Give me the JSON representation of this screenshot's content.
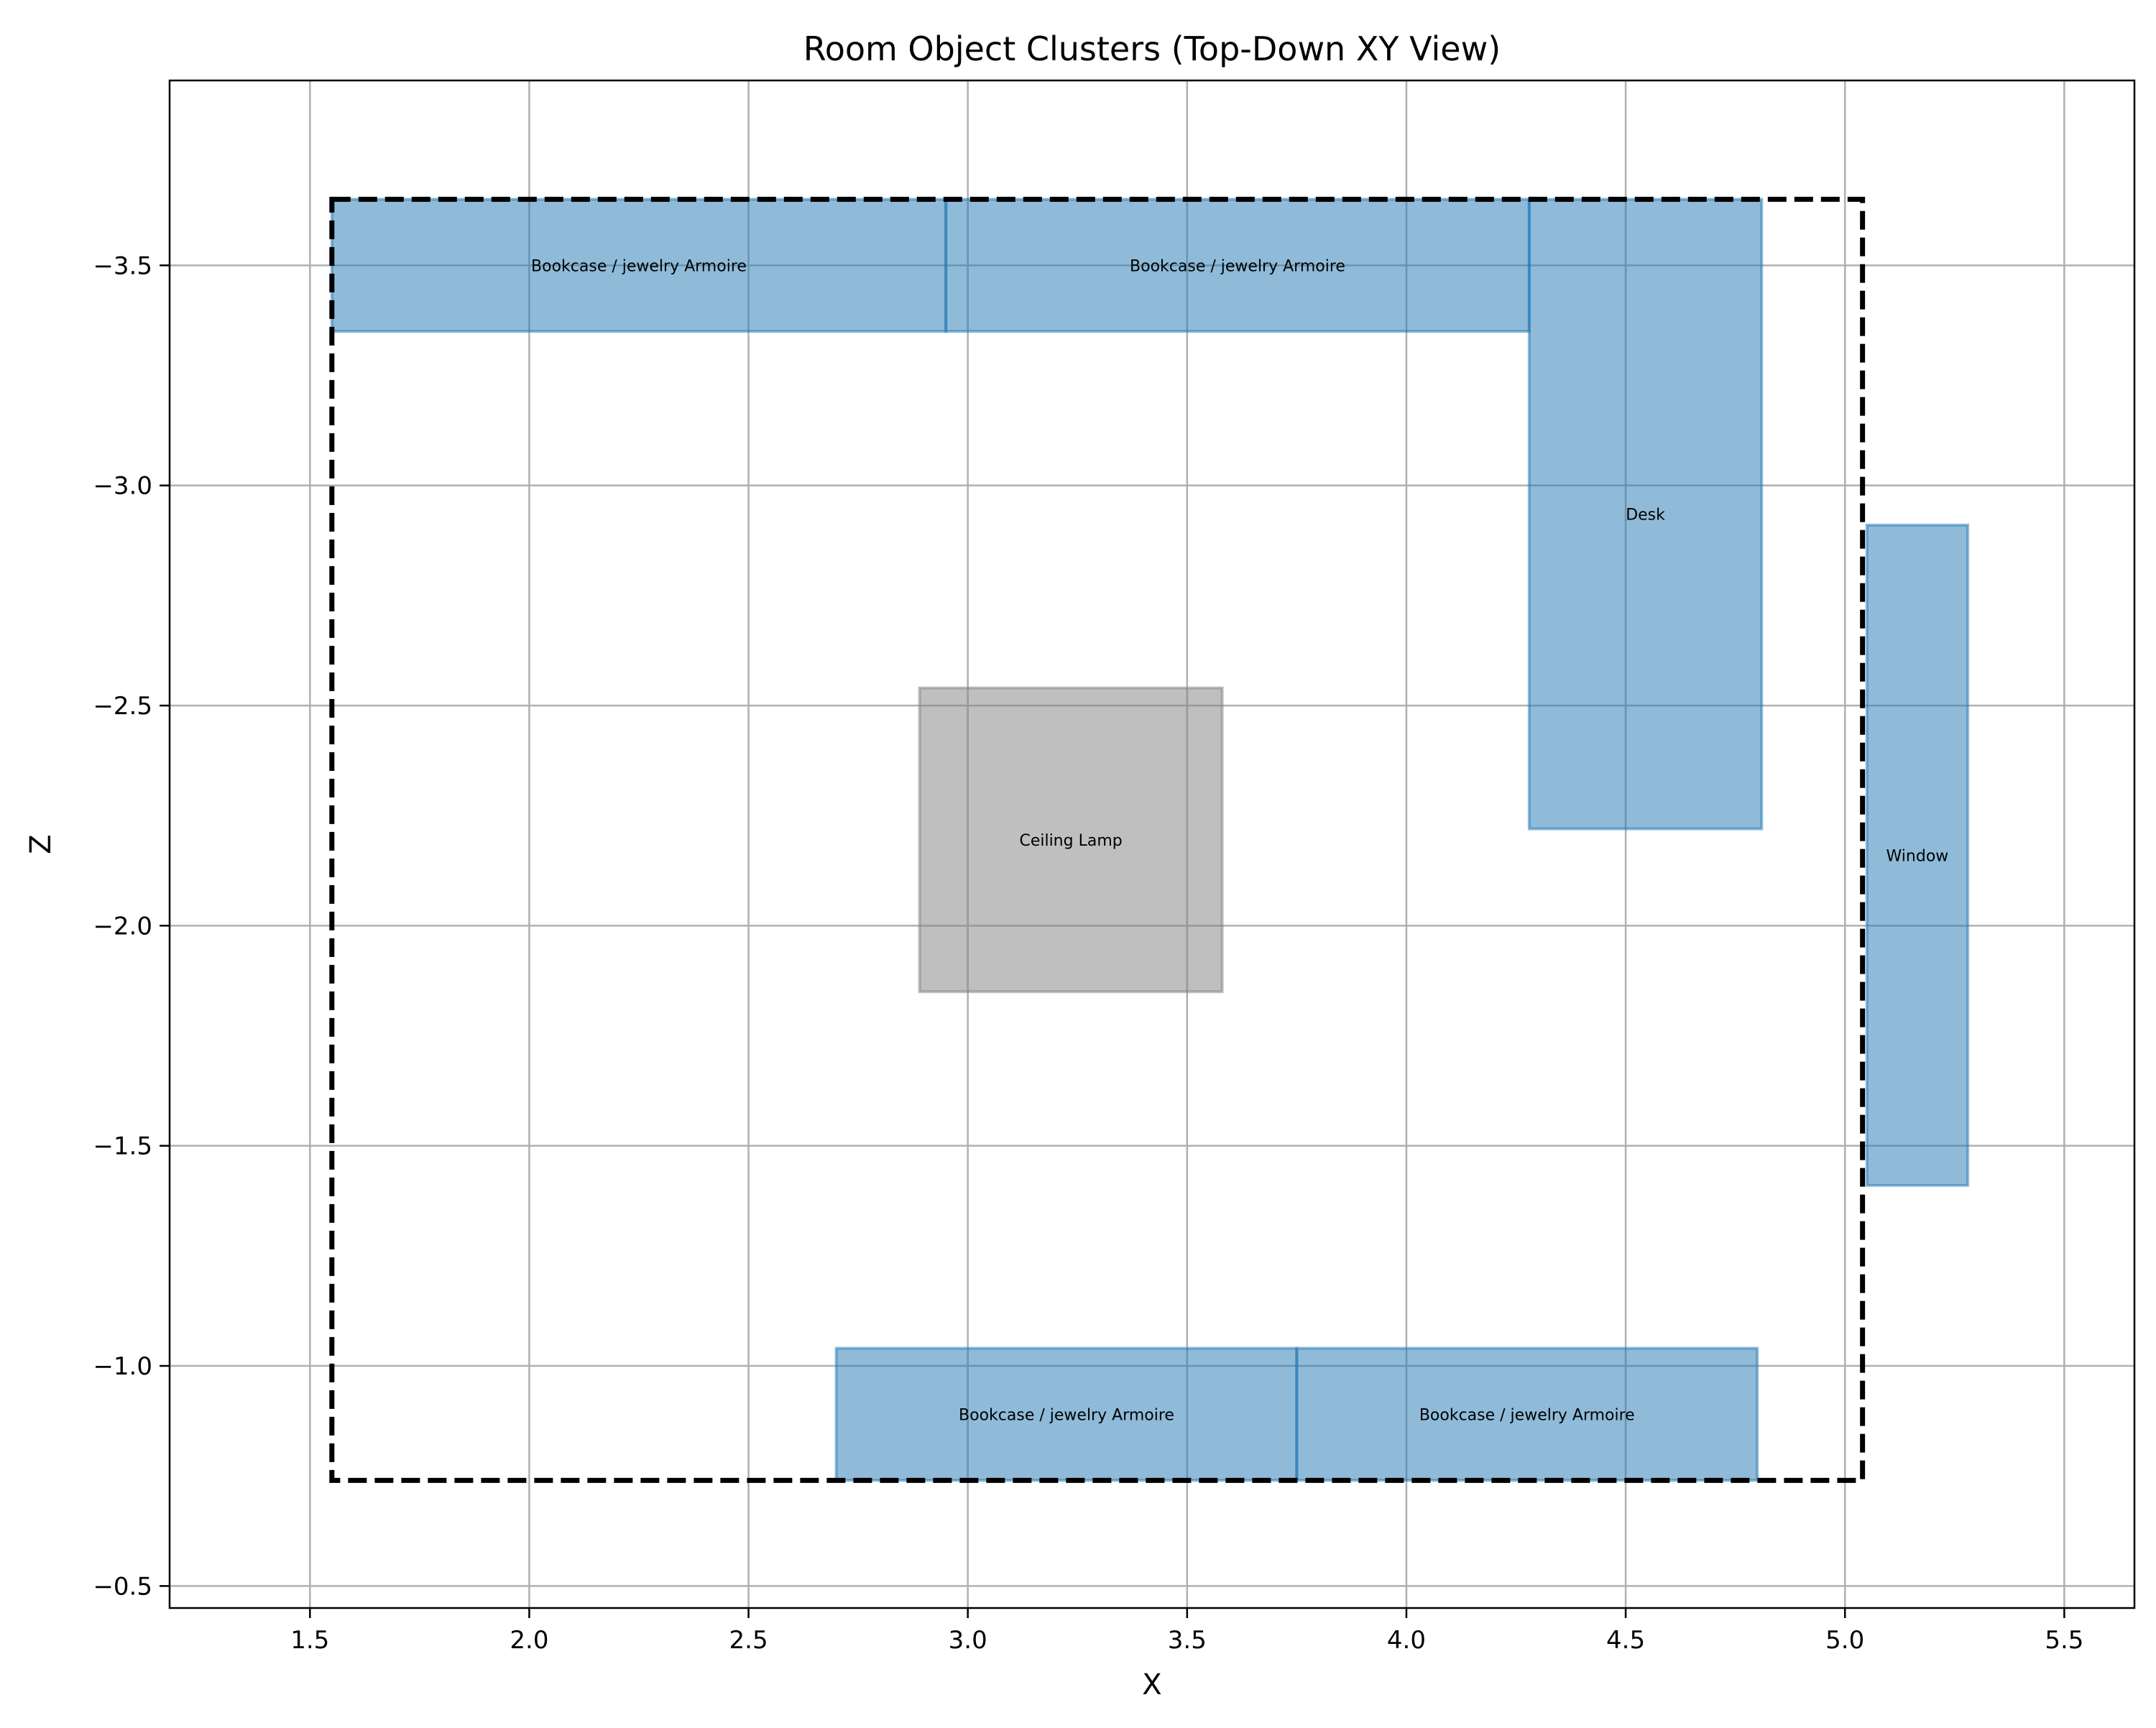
{
  "chart_data": {
    "type": "rectangles",
    "title": "Room Object Clusters (Top-Down XY View)",
    "xlabel": "X",
    "ylabel": "Z",
    "xlim": [
      1.18,
      5.66
    ],
    "ylim": [
      -0.45,
      -3.92
    ],
    "y_inverted": true,
    "grid": true,
    "x_ticks": [
      1.5,
      2.0,
      2.5,
      3.0,
      3.5,
      4.0,
      4.5,
      5.0,
      5.5
    ],
    "x_tick_labels": [
      "1.5",
      "2.0",
      "2.5",
      "3.0",
      "3.5",
      "4.0",
      "4.5",
      "5.0",
      "5.5"
    ],
    "y_ticks": [
      -0.5,
      -1.0,
      -1.5,
      -2.0,
      -2.5,
      -3.0,
      -3.5
    ],
    "y_tick_labels": [
      "−0.5",
      "−1.0",
      "−1.5",
      "−2.0",
      "−2.5",
      "−3.0",
      "−3.5"
    ],
    "room_outline": {
      "x0": 1.55,
      "x1": 5.04,
      "z0": -0.74,
      "z1": -3.65,
      "style": "dashed"
    },
    "objects": [
      {
        "label": "Bookcase / jewelry Armoire",
        "x0": 1.55,
        "x1": 2.95,
        "z0": -3.35,
        "z1": -3.65,
        "color": "#1f77b4"
      },
      {
        "label": "Bookcase / jewelry Armoire",
        "x0": 2.95,
        "x1": 4.28,
        "z0": -3.35,
        "z1": -3.65,
        "color": "#1f77b4"
      },
      {
        "label": "Desk",
        "x0": 4.28,
        "x1": 4.81,
        "z0": -2.22,
        "z1": -3.65,
        "color": "#1f77b4"
      },
      {
        "label": "Window",
        "x0": 5.05,
        "x1": 5.28,
        "z0": -1.41,
        "z1": -2.91,
        "color": "#1f77b4"
      },
      {
        "label": "Ceiling Lamp",
        "x0": 2.89,
        "x1": 3.58,
        "z0": -1.85,
        "z1": -2.54,
        "color": "#7f7f7f"
      },
      {
        "label": "Bookcase / jewelry Armoire",
        "x0": 2.7,
        "x1": 3.75,
        "z0": -0.74,
        "z1": -1.04,
        "color": "#1f77b4"
      },
      {
        "label": "Bookcase / jewelry Armoire",
        "x0": 3.75,
        "x1": 4.8,
        "z0": -0.74,
        "z1": -1.04,
        "color": "#1f77b4"
      }
    ]
  }
}
